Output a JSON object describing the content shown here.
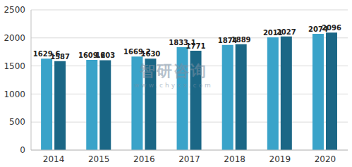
{
  "chart_data": {
    "type": "bar",
    "categories": [
      "2014",
      "2015",
      "2016",
      "2017",
      "2018",
      "2019",
      "2020"
    ],
    "series": [
      {
        "color": "#3aa3c9",
        "values": [
          1629.6,
          1609.2,
          1669.2,
          1833.1,
          1874,
          2011,
          2074
        ]
      },
      {
        "color": "#1b6786",
        "values": [
          1587,
          1603,
          1630,
          1771,
          1889,
          2027,
          2096
        ]
      }
    ],
    "ylim": [
      0,
      2500
    ],
    "yticks": [
      0,
      500,
      1000,
      1500,
      2000,
      2500
    ],
    "grid": true,
    "data_labels": true,
    "annotations": [
      "智研咨询",
      "www.chyxx.com"
    ]
  }
}
